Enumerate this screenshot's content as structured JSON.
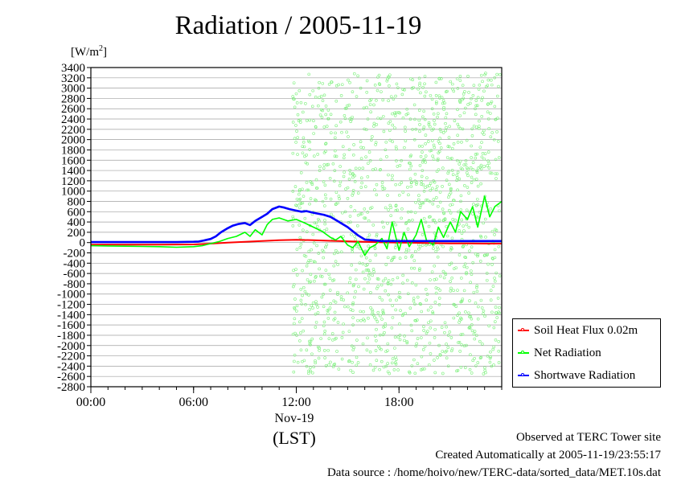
{
  "chart_data": {
    "type": "line",
    "title": "Radiation / 2005-11-19",
    "ylabel_unit": "[W/m",
    "ylabel_unit_sup": "2",
    "ylabel_unit_close": "]",
    "ylim": [
      -2800,
      3400
    ],
    "yticks": [
      3400,
      3200,
      3000,
      2800,
      2600,
      2400,
      2200,
      2000,
      1800,
      1600,
      1400,
      1200,
      1000,
      800,
      600,
      400,
      200,
      0,
      -200,
      -400,
      -600,
      -800,
      -1000,
      -1200,
      -1400,
      -1600,
      -1800,
      -2000,
      -2200,
      -2400,
      -2600,
      -2800
    ],
    "xlim_hours": [
      0,
      24
    ],
    "xticks": [
      {
        "hour": 0,
        "label": "00:00"
      },
      {
        "hour": 6,
        "label": "06:00"
      },
      {
        "hour": 12,
        "label": "12:00"
      },
      {
        "hour": 18,
        "label": "18:00"
      }
    ],
    "date_label": "Nov-19",
    "time_zone_label": "(LST)",
    "grid": true,
    "legend_position": "right",
    "series": [
      {
        "name": "Soil Heat Flux 0.02m",
        "color": "#ff0000",
        "x": [
          0,
          2,
          4,
          6,
          7,
          8,
          9,
          10,
          11,
          12,
          13,
          14,
          15,
          16,
          17,
          18,
          19,
          20,
          21,
          22,
          23,
          24
        ],
        "y": [
          -40,
          -40,
          -40,
          -35,
          -20,
          0,
          15,
          30,
          45,
          55,
          45,
          35,
          25,
          15,
          5,
          0,
          -5,
          -10,
          -15,
          -15,
          -20,
          -20
        ]
      },
      {
        "name": "Net Radiation",
        "color": "#00ff00",
        "x": [
          0,
          1,
          2,
          3,
          4,
          5,
          6,
          6.5,
          7,
          7.5,
          8,
          8.5,
          9,
          9.3,
          9.6,
          10,
          10.3,
          10.6,
          11,
          11.5,
          12,
          12.5,
          13,
          13.5,
          14,
          14.3,
          14.6,
          15,
          15.3,
          15.6,
          16,
          16.3,
          16.6,
          17,
          17.3,
          17.6,
          18,
          18.3,
          18.6,
          19,
          19.3,
          19.6,
          20,
          20.3,
          20.6,
          21,
          21.3,
          21.6,
          22,
          22.3,
          22.6,
          23,
          23.3,
          23.6,
          24
        ],
        "y": [
          -60,
          -65,
          -70,
          -75,
          -80,
          -90,
          -80,
          -60,
          -20,
          20,
          80,
          120,
          200,
          120,
          250,
          150,
          350,
          450,
          480,
          420,
          450,
          380,
          300,
          220,
          100,
          50,
          120,
          -50,
          -100,
          20,
          -250,
          -100,
          -50,
          80,
          -120,
          400,
          -150,
          200,
          -80,
          150,
          450,
          50,
          -50,
          300,
          100,
          400,
          200,
          600,
          450,
          700,
          300,
          900,
          500,
          700,
          800
        ]
      },
      {
        "name": "Shortwave Radiation",
        "color": "#0000ff",
        "x": [
          0,
          1,
          2,
          3,
          4,
          5,
          6,
          6.3,
          6.6,
          7,
          7.3,
          7.6,
          8,
          8.3,
          8.6,
          9,
          9.3,
          9.6,
          10,
          10.3,
          10.6,
          11,
          11.3,
          11.6,
          12,
          12.3,
          12.6,
          13,
          13.3,
          13.6,
          14,
          14.3,
          14.6,
          15,
          15.3,
          15.6,
          16,
          17,
          18,
          19,
          20,
          21,
          22,
          23,
          24
        ],
        "y": [
          10,
          10,
          10,
          10,
          10,
          10,
          15,
          20,
          40,
          70,
          120,
          200,
          280,
          330,
          360,
          380,
          340,
          420,
          500,
          560,
          650,
          700,
          680,
          650,
          620,
          600,
          610,
          580,
          560,
          540,
          500,
          440,
          380,
          300,
          220,
          140,
          60,
          30,
          30,
          30,
          30,
          30,
          30,
          30,
          30
        ]
      }
    ]
  },
  "footer": {
    "observed": "Observed at TERC Tower site",
    "created": "Created Automatically at 2005-11-19/23:55:17",
    "source": "Data source : /home/hoivo/new/TERC-data/sorted_data/MET.10s.dat"
  }
}
